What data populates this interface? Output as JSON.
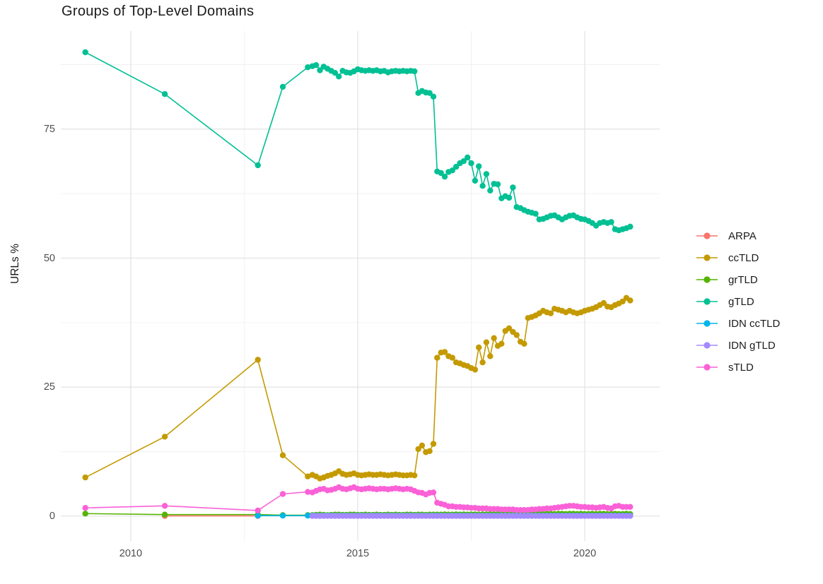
{
  "page": {
    "background": "#FFFFFF"
  },
  "chart_data": {
    "type": "line",
    "title": "Groups of Top-Level Domains",
    "xlabel": "",
    "ylabel": "URLs %",
    "xlim": [
      2008.46,
      2021.65
    ],
    "ylim": [
      -4.8,
      94
    ],
    "grid": true,
    "legend_position": "right",
    "x_axis": {
      "tick_values": [
        2010,
        2015,
        2020
      ],
      "tick_labels": [
        "2010",
        "2015",
        "2020"
      ],
      "minor_ticks": [
        2012.5,
        2017.5
      ]
    },
    "y_axis": {
      "tick_values": [
        0,
        25,
        50,
        75
      ],
      "tick_labels": [
        "0",
        "25",
        "50",
        "75"
      ],
      "minor_ticks": [
        12.5,
        37.5,
        62.5,
        87.5
      ]
    },
    "style": {
      "grid_major_color": "#E4E4E4",
      "grid_minor_color": "#F0F0F0",
      "tick_label_color": "#4D4D4D",
      "title_color": "#1B1B1B",
      "point_radius": 4.2,
      "line_width": 1.6
    },
    "series": [
      {
        "name": "ARPA",
        "color": "#F8766D",
        "segments": [
          {
            "points": [
              [
                2010.75,
                0.05
              ],
              [
                2012.8,
                0.05
              ]
            ]
          }
        ]
      },
      {
        "name": "ccTLD",
        "color": "#C49A00",
        "segments": [
          {
            "points": [
              [
                2009,
                7.5
              ],
              [
                2010.75,
                15.4
              ],
              [
                2012.8,
                30.3
              ],
              [
                2013.35,
                11.8
              ],
              [
                2013.9,
                7.7
              ]
            ]
          },
          {
            "start": 2014,
            "values": [
              8,
              7.7,
              7.3,
              7.5,
              7.8,
              8,
              8.3,
              8.7,
              8.2,
              8,
              8.1,
              8.3,
              8,
              7.9,
              8,
              8.1,
              8,
              8,
              8.1,
              8,
              7.9,
              8,
              8.1,
              8,
              7.9,
              7.9,
              8,
              7.9,
              13,
              13.7,
              12.4,
              12.6,
              14,
              30.7,
              31.7,
              31.8,
              31,
              30.7,
              29.8,
              29.6,
              29.3,
              29.1,
              28.7,
              28.4,
              32.7,
              29.8,
              33.7,
              31,
              34.5,
              33,
              33.4,
              35.9,
              36.4,
              35.7,
              35.1,
              33.8,
              33.4,
              38.4,
              38.6,
              38.9,
              39.3,
              39.8,
              39.5,
              39.3,
              40.2,
              40,
              39.8,
              39.5,
              39.8,
              39.5,
              39.3,
              39.5,
              39.8,
              40,
              40.2,
              40.5,
              40.9,
              41.3,
              40.6,
              40.5,
              40.9,
              41.2,
              41.6,
              42.3,
              41.8
            ]
          }
        ]
      },
      {
        "name": "grTLD",
        "color": "#53B400",
        "segments": [
          {
            "points": [
              [
                2009,
                0.5
              ],
              [
                2010.75,
                0.3
              ],
              [
                2012.8,
                0.3
              ],
              [
                2013.35,
                0.2
              ],
              [
                2013.9,
                0.2
              ]
            ]
          },
          {
            "start": 2014,
            "values": [
              0.2,
              0.25,
              0.3,
              0.25,
              0.2,
              0.25,
              0.3,
              0.3,
              0.25,
              0.25,
              0.3,
              0.3,
              0.25,
              0.25,
              0.3,
              0.25,
              0.25,
              0.3,
              0.25,
              0.25,
              0.3,
              0.25,
              0.3,
              0.25,
              0.25,
              0.3,
              0.3,
              0.25,
              0.3,
              0.3,
              0.25,
              0.3,
              0.3,
              0.3,
              0.3,
              0.35,
              0.3,
              0.3,
              0.35,
              0.3,
              0.35,
              0.3,
              0.35,
              0.35,
              0.3,
              0.35,
              0.35,
              0.4,
              0.35,
              0.4,
              0.35,
              0.4,
              0.4,
              0.35,
              0.4,
              0.4,
              0.4,
              0.45,
              0.4,
              0.4,
              0.45,
              0.4,
              0.45,
              0.45,
              0.4,
              0.45,
              0.45,
              0.4,
              0.45,
              0.45,
              0.4,
              0.45,
              0.4,
              0.4,
              0.45,
              0.4,
              0.45,
              0.45,
              0.4,
              0.4,
              0.45,
              0.4,
              0.4,
              0.45,
              0.4
            ]
          }
        ]
      },
      {
        "name": "gTLD",
        "color": "#00C094",
        "segments": [
          {
            "points": [
              [
                2009,
                89.9
              ],
              [
                2010.75,
                81.8
              ],
              [
                2012.8,
                68
              ],
              [
                2013.35,
                83.2
              ],
              [
                2013.9,
                87
              ]
            ]
          },
          {
            "start": 2014,
            "values": [
              87.2,
              87.4,
              86.4,
              87.1,
              86.7,
              86.3,
              85.9,
              85.2,
              86.3,
              86,
              85.9,
              86.2,
              86.6,
              86.4,
              86.3,
              86.4,
              86.3,
              86.4,
              86.2,
              86.3,
              86,
              86.2,
              86.3,
              86.2,
              86.3,
              86.2,
              86.3,
              86.2,
              82,
              82.4,
              82.1,
              82,
              81.3,
              66.8,
              66.5,
              65.8,
              66.7,
              67,
              67.7,
              68.4,
              68.8,
              69.5,
              68.4,
              65,
              67.8,
              64,
              66.3,
              63.1,
              64.4,
              64.3,
              61.6,
              62,
              61.7,
              63.7,
              59.9,
              59.7,
              59.3,
              59,
              58.8,
              58.6,
              57.5,
              57.6,
              57.9,
              58.2,
              58.3,
              57.9,
              57.5,
              57.9,
              58.2,
              58.3,
              57.9,
              57.6,
              57.5,
              57.2,
              56.8,
              56.3,
              56.8,
              57,
              56.8,
              57,
              55.6,
              55.4,
              55.6,
              55.8,
              56.1
            ]
          }
        ]
      },
      {
        "name": "IDN ccTLD",
        "color": "#00B6EB",
        "segments": [
          {
            "points": [
              [
                2012.8,
                0.1
              ],
              [
                2013.35,
                0.1
              ],
              [
                2013.9,
                0.1
              ]
            ]
          },
          {
            "start": 2014,
            "count": 85,
            "value": 0.1
          }
        ]
      },
      {
        "name": "IDN gTLD",
        "color": "#A58AFF",
        "segments": [
          {
            "start": 2014,
            "count": 85,
            "value": 0.05
          }
        ]
      },
      {
        "name": "sTLD",
        "color": "#FB61D7",
        "segments": [
          {
            "points": [
              [
                2009,
                1.6
              ],
              [
                2010.75,
                2
              ],
              [
                2012.8,
                1.1
              ],
              [
                2013.35,
                4.3
              ],
              [
                2013.9,
                4.7
              ]
            ]
          },
          {
            "start": 2014,
            "values": [
              4.6,
              4.9,
              5.2,
              5.3,
              5,
              5.1,
              5.3,
              5.6,
              5.3,
              5.2,
              5.4,
              5.6,
              5.3,
              5.2,
              5.3,
              5.4,
              5.3,
              5.2,
              5.3,
              5.3,
              5.2,
              5.3,
              5.4,
              5.3,
              5.2,
              5.3,
              5.2,
              4.9,
              4.6,
              4.5,
              4.2,
              4.5,
              4.6,
              2.6,
              2.4,
              2.2,
              1.9,
              1.9,
              1.8,
              1.8,
              1.7,
              1.7,
              1.6,
              1.6,
              1.5,
              1.5,
              1.5,
              1.4,
              1.4,
              1.4,
              1.3,
              1.3,
              1.3,
              1.3,
              1.2,
              1.2,
              1.2,
              1.2,
              1.3,
              1.3,
              1.4,
              1.4,
              1.5,
              1.5,
              1.6,
              1.7,
              1.8,
              1.9,
              2,
              2,
              1.9,
              1.8,
              1.8,
              1.7,
              1.7,
              1.6,
              1.7,
              1.8,
              1.6,
              1.5,
              1.9,
              2,
              1.8,
              1.8,
              1.8
            ]
          }
        ]
      }
    ]
  }
}
